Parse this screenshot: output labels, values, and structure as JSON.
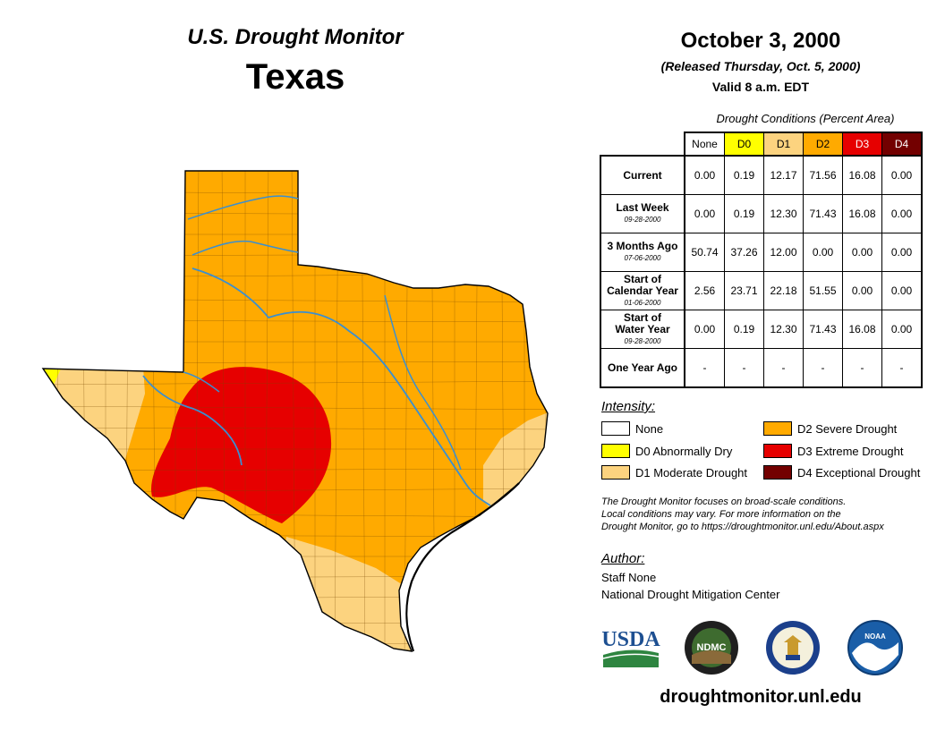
{
  "header": {
    "product": "U.S. Drought Monitor",
    "state": "Texas",
    "date": "October 3, 2000",
    "released": "(Released Thursday, Oct. 5, 2000)",
    "valid": "Valid 8 a.m. EDT"
  },
  "conditions": {
    "title": "Drought Conditions (Percent Area)",
    "columns": [
      {
        "label": "None",
        "color": "#ffffff",
        "text_color": "#000000"
      },
      {
        "label": "D0",
        "color": "#ffff00",
        "text_color": "#000000"
      },
      {
        "label": "D1",
        "color": "#fcd37f",
        "text_color": "#000000"
      },
      {
        "label": "D2",
        "color": "#ffaa00",
        "text_color": "#000000"
      },
      {
        "label": "D3",
        "color": "#e60000",
        "text_color": "#ffffff"
      },
      {
        "label": "D4",
        "color": "#730000",
        "text_color": "#ffffff"
      }
    ],
    "rows": [
      {
        "label_lines": [
          "Current"
        ],
        "date": "",
        "values": [
          "0.00",
          "0.19",
          "12.17",
          "71.56",
          "16.08",
          "0.00"
        ]
      },
      {
        "label_lines": [
          "Last Week"
        ],
        "date": "09-28-2000",
        "values": [
          "0.00",
          "0.19",
          "12.30",
          "71.43",
          "16.08",
          "0.00"
        ]
      },
      {
        "label_lines": [
          "3 Months Ago"
        ],
        "date": "07-06-2000",
        "values": [
          "50.74",
          "37.26",
          "12.00",
          "0.00",
          "0.00",
          "0.00"
        ]
      },
      {
        "label_lines": [
          "Start of",
          "Calendar Year"
        ],
        "date": "01-06-2000",
        "values": [
          "2.56",
          "23.71",
          "22.18",
          "51.55",
          "0.00",
          "0.00"
        ]
      },
      {
        "label_lines": [
          "Start of",
          "Water Year"
        ],
        "date": "09-28-2000",
        "values": [
          "0.00",
          "0.19",
          "12.30",
          "71.43",
          "16.08",
          "0.00"
        ]
      },
      {
        "label_lines": [
          "One Year Ago"
        ],
        "date": "",
        "values": [
          "-",
          "-",
          "-",
          "-",
          "-",
          "-"
        ]
      }
    ]
  },
  "legend": {
    "title": "Intensity:",
    "items": [
      {
        "label": "None",
        "color": "#ffffff"
      },
      {
        "label": "D0 Abnormally Dry",
        "color": "#ffff00"
      },
      {
        "label": "D1 Moderate Drought",
        "color": "#fcd37f"
      },
      {
        "label": "D2 Severe Drought",
        "color": "#ffaa00"
      },
      {
        "label": "D3 Extreme Drought",
        "color": "#e60000"
      },
      {
        "label": "D4 Exceptional Drought",
        "color": "#730000"
      }
    ]
  },
  "note": {
    "lines": [
      "The Drought Monitor focuses on broad-scale conditions.",
      "Local conditions may vary. For more information on the",
      "Drought Monitor, go to https://droughtmonitor.unl.edu/About.aspx"
    ]
  },
  "author": {
    "title": "Author:",
    "name": "Staff None",
    "org": "National Drought Mitigation Center"
  },
  "logos": {
    "usda": "USDA",
    "ndmc": "NDMC",
    "noaa": "NOAA",
    "usda_color": "#1d4f91",
    "usda_green": "#2e8540"
  },
  "footer": {
    "url": "droughtmonitor.unl.edu"
  },
  "map": {
    "river_color": "#3a8fd0",
    "county_line_color": "#7a4a00"
  }
}
